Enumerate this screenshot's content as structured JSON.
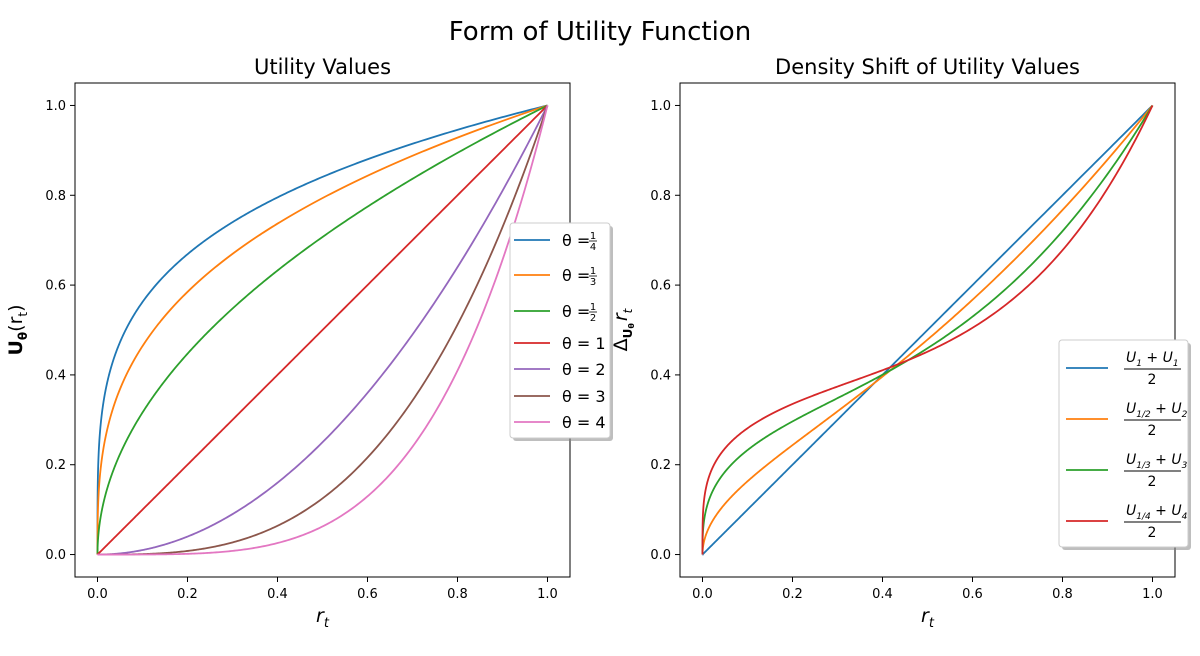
{
  "figure": {
    "title": "Form of Utility Function"
  },
  "chart_data": [
    {
      "type": "line",
      "title": "Utility Values",
      "xlabel": "r_t",
      "ylabel": "U_θ(r_t)",
      "xlim": [
        -0.05,
        1.05
      ],
      "ylim": [
        -0.05,
        1.05
      ],
      "xticks": [
        "0.0",
        "0.2",
        "0.4",
        "0.6",
        "0.8",
        "1.0"
      ],
      "yticks": [
        "0.0",
        "0.2",
        "0.4",
        "0.6",
        "0.8",
        "1.0"
      ],
      "grid": false,
      "legend_position": "center-right",
      "function": "y = x^θ",
      "x": [
        0,
        0.001,
        0.01,
        0.05,
        0.1,
        0.2,
        0.3,
        0.4,
        0.5,
        0.6,
        0.7,
        0.8,
        0.9,
        1.0
      ],
      "series": [
        {
          "name": "θ = 1/4",
          "theta": 0.25,
          "color": "#1f77b4",
          "values": [
            0,
            0.178,
            0.316,
            0.473,
            0.562,
            0.669,
            0.74,
            0.795,
            0.841,
            0.88,
            0.915,
            0.946,
            0.974,
            1.0
          ]
        },
        {
          "name": "θ = 1/3",
          "theta": 0.3333,
          "color": "#ff7f0e",
          "values": [
            0,
            0.1,
            0.215,
            0.368,
            0.464,
            0.585,
            0.669,
            0.737,
            0.794,
            0.843,
            0.888,
            0.928,
            0.965,
            1.0
          ]
        },
        {
          "name": "θ = 1/2",
          "theta": 0.5,
          "color": "#2ca02c",
          "values": [
            0,
            0.032,
            0.1,
            0.224,
            0.316,
            0.447,
            0.548,
            0.632,
            0.707,
            0.775,
            0.837,
            0.894,
            0.949,
            1.0
          ]
        },
        {
          "name": "θ = 1",
          "theta": 1,
          "color": "#d62728",
          "values": [
            0,
            0.001,
            0.01,
            0.05,
            0.1,
            0.2,
            0.3,
            0.4,
            0.5,
            0.6,
            0.7,
            0.8,
            0.9,
            1.0
          ]
        },
        {
          "name": "θ = 2",
          "theta": 2,
          "color": "#9467bd",
          "values": [
            0,
            0.0,
            0.0,
            0.003,
            0.01,
            0.04,
            0.09,
            0.16,
            0.25,
            0.36,
            0.49,
            0.64,
            0.81,
            1.0
          ]
        },
        {
          "name": "θ = 3",
          "theta": 3,
          "color": "#8c564b",
          "values": [
            0,
            0.0,
            0.0,
            0.0,
            0.001,
            0.008,
            0.027,
            0.064,
            0.125,
            0.216,
            0.343,
            0.512,
            0.729,
            1.0
          ]
        },
        {
          "name": "θ = 4",
          "theta": 4,
          "color": "#e377c2",
          "values": [
            0,
            0.0,
            0.0,
            0.0,
            0.0,
            0.002,
            0.008,
            0.026,
            0.063,
            0.13,
            0.24,
            0.41,
            0.656,
            1.0
          ]
        }
      ],
      "legend": [
        {
          "prefix": "θ = ",
          "num": "1",
          "den": "4",
          "color": "#1f77b4"
        },
        {
          "prefix": "θ = ",
          "num": "1",
          "den": "3",
          "color": "#ff7f0e"
        },
        {
          "prefix": "θ = ",
          "num": "1",
          "den": "2",
          "color": "#2ca02c"
        },
        {
          "prefix": "θ = ",
          "text": "1",
          "color": "#d62728"
        },
        {
          "prefix": "θ = ",
          "text": "2",
          "color": "#9467bd"
        },
        {
          "prefix": "θ = ",
          "text": "3",
          "color": "#8c564b"
        },
        {
          "prefix": "θ = ",
          "text": "4",
          "color": "#e377c2"
        }
      ]
    },
    {
      "type": "line",
      "title": "Density Shift of Utility Values",
      "xlabel": "r_t",
      "ylabel": "Δ_{U_θ} r_t",
      "xlim": [
        -0.05,
        1.05
      ],
      "ylim": [
        -0.05,
        1.05
      ],
      "xticks": [
        "0.0",
        "0.2",
        "0.4",
        "0.6",
        "0.8",
        "1.0"
      ],
      "yticks": [
        "0.0",
        "0.2",
        "0.4",
        "0.6",
        "0.8",
        "1.0"
      ],
      "grid": false,
      "legend_position": "lower-right",
      "function": "y = (x^(1/k) + x^k) / 2",
      "x": [
        0,
        0.001,
        0.01,
        0.05,
        0.1,
        0.2,
        0.3,
        0.4,
        0.5,
        0.6,
        0.7,
        0.8,
        0.9,
        1.0
      ],
      "series": [
        {
          "name": "(U_1 + U_1)/2",
          "k": 1,
          "color": "#1f77b4",
          "values": [
            0,
            0.001,
            0.01,
            0.05,
            0.1,
            0.2,
            0.3,
            0.4,
            0.5,
            0.6,
            0.7,
            0.8,
            0.9,
            1.0
          ]
        },
        {
          "name": "(U_1/2 + U_2)/2",
          "k": 2,
          "color": "#ff7f0e",
          "values": [
            0,
            0.016,
            0.05,
            0.113,
            0.163,
            0.244,
            0.319,
            0.396,
            0.479,
            0.567,
            0.663,
            0.767,
            0.879,
            1.0
          ]
        },
        {
          "name": "(U_1/3 + U_3)/2",
          "k": 3,
          "color": "#2ca02c",
          "values": [
            0,
            0.05,
            0.108,
            0.184,
            0.233,
            0.296,
            0.348,
            0.4,
            0.459,
            0.529,
            0.616,
            0.72,
            0.847,
            1.0
          ]
        },
        {
          "name": "(U_1/4 + U_4)/2",
          "k": 4,
          "color": "#d62728",
          "values": [
            0,
            0.089,
            0.158,
            0.236,
            0.281,
            0.335,
            0.374,
            0.41,
            0.452,
            0.505,
            0.577,
            0.678,
            0.815,
            1.0
          ]
        }
      ],
      "legend": [
        {
          "a": "U",
          "a_sub": "1",
          "b": "U",
          "b_sub": "1",
          "den": "2",
          "color": "#1f77b4"
        },
        {
          "a": "U",
          "a_sub": "1/2",
          "b": "U",
          "b_sub": "2",
          "den": "2",
          "color": "#ff7f0e"
        },
        {
          "a": "U",
          "a_sub": "1/3",
          "b": "U",
          "b_sub": "3",
          "den": "2",
          "color": "#2ca02c"
        },
        {
          "a": "U",
          "a_sub": "1/4",
          "b": "U",
          "b_sub": "4",
          "den": "2",
          "color": "#d62728"
        }
      ]
    }
  ]
}
